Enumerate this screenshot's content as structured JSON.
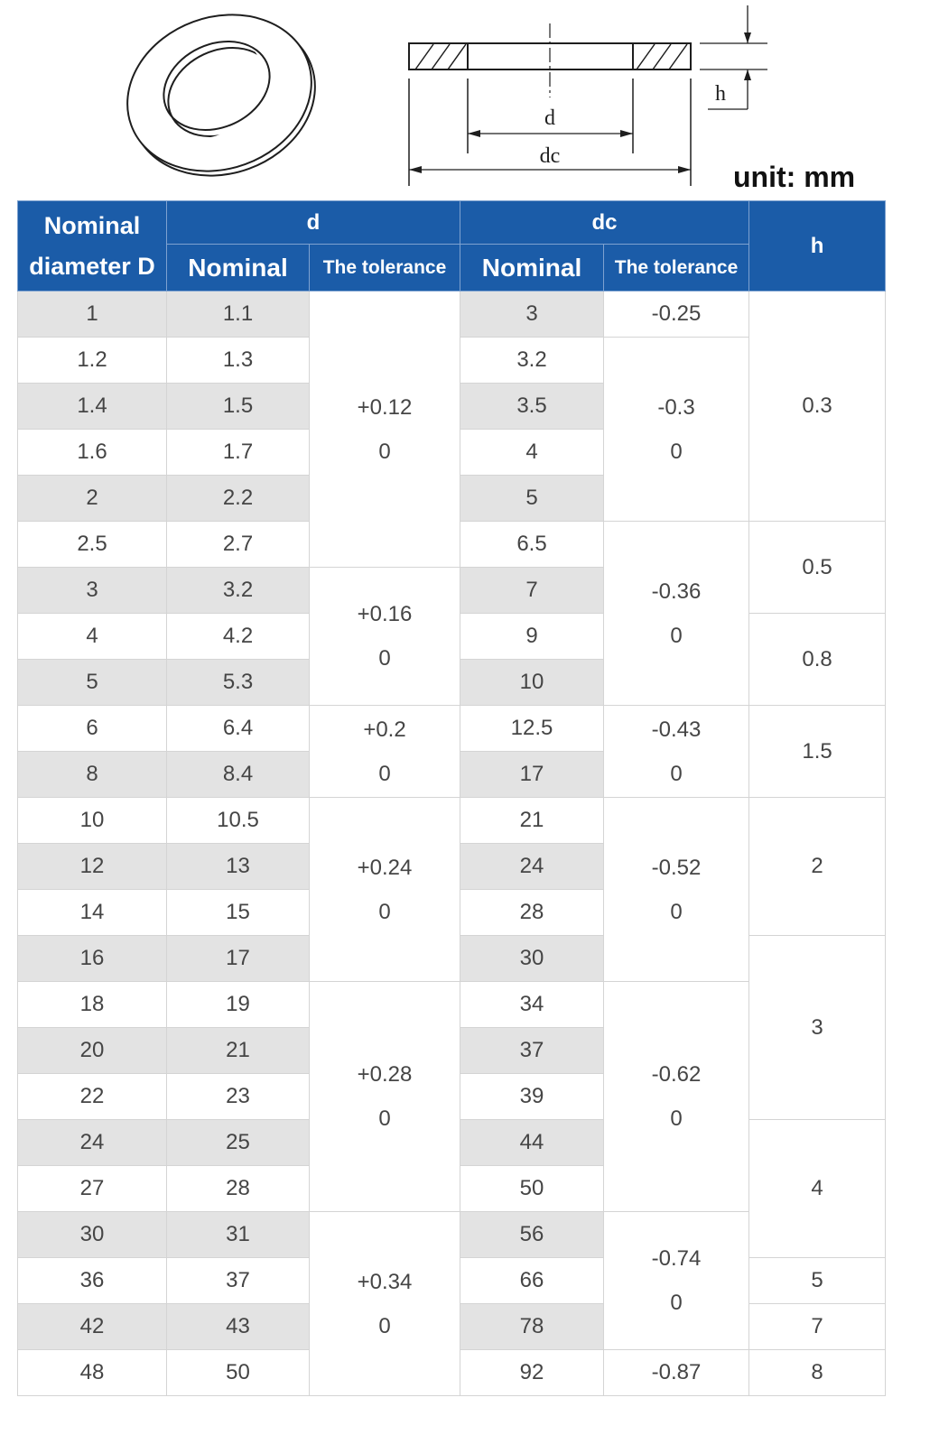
{
  "diagram": {
    "d_label": "d",
    "dc_label": "dc",
    "h_label": "h"
  },
  "unit_label": "unit: mm",
  "colors": {
    "header_bg": "#1b5ca8",
    "header_rule": "#7ea2d0",
    "row_shade": "#e3e3e3",
    "grid": "#d4d4d4",
    "text": "#454545"
  },
  "table": {
    "headers": {
      "nominal_diameter": "Nominal diameter D",
      "d": "d",
      "dc": "dc",
      "h": "h",
      "d_nominal": "Nominal",
      "d_tolerance": "The tolerance",
      "dc_nominal": "Nominal",
      "dc_tolerance": "The tolerance"
    },
    "rows": [
      {
        "D": "1",
        "d_nominal": "1.1",
        "dc_nominal": "3"
      },
      {
        "D": "1.2",
        "d_nominal": "1.3",
        "dc_nominal": "3.2"
      },
      {
        "D": "1.4",
        "d_nominal": "1.5",
        "dc_nominal": "3.5"
      },
      {
        "D": "1.6",
        "d_nominal": "1.7",
        "dc_nominal": "4"
      },
      {
        "D": "2",
        "d_nominal": "2.2",
        "dc_nominal": "5"
      },
      {
        "D": "2.5",
        "d_nominal": "2.7",
        "dc_nominal": "6.5"
      },
      {
        "D": "3",
        "d_nominal": "3.2",
        "dc_nominal": "7"
      },
      {
        "D": "4",
        "d_nominal": "4.2",
        "dc_nominal": "9"
      },
      {
        "D": "5",
        "d_nominal": "5.3",
        "dc_nominal": "10"
      },
      {
        "D": "6",
        "d_nominal": "6.4",
        "dc_nominal": "12.5"
      },
      {
        "D": "8",
        "d_nominal": "8.4",
        "dc_nominal": "17"
      },
      {
        "D": "10",
        "d_nominal": "10.5",
        "dc_nominal": "21"
      },
      {
        "D": "12",
        "d_nominal": "13",
        "dc_nominal": "24"
      },
      {
        "D": "14",
        "d_nominal": "15",
        "dc_nominal": "28"
      },
      {
        "D": "16",
        "d_nominal": "17",
        "dc_nominal": "30"
      },
      {
        "D": "18",
        "d_nominal": "19",
        "dc_nominal": "34"
      },
      {
        "D": "20",
        "d_nominal": "21",
        "dc_nominal": "37"
      },
      {
        "D": "22",
        "d_nominal": "23",
        "dc_nominal": "39"
      },
      {
        "D": "24",
        "d_nominal": "25",
        "dc_nominal": "44"
      },
      {
        "D": "27",
        "d_nominal": "28",
        "dc_nominal": "50"
      },
      {
        "D": "30",
        "d_nominal": "31",
        "dc_nominal": "56"
      },
      {
        "D": "36",
        "d_nominal": "37",
        "dc_nominal": "66"
      },
      {
        "D": "42",
        "d_nominal": "43",
        "dc_nominal": "78"
      },
      {
        "D": "48",
        "d_nominal": "50",
        "dc_nominal": "92"
      }
    ],
    "d_tolerance_groups": [
      {
        "row_count": 6,
        "upper": "+0.12",
        "lower": "0"
      },
      {
        "row_count": 3,
        "upper": "+0.16",
        "lower": "0"
      },
      {
        "row_count": 2,
        "upper": "+0.2",
        "lower": "0"
      },
      {
        "row_count": 4,
        "upper": "+0.24",
        "lower": "0"
      },
      {
        "row_count": 5,
        "upper": "+0.28",
        "lower": "0"
      },
      {
        "row_count": 4,
        "upper": "+0.34",
        "lower": "0"
      }
    ],
    "dc_tolerance_groups": [
      {
        "row_count": 1,
        "value": "-0.25"
      },
      {
        "row_count": 4,
        "upper": "-0.3",
        "lower": "0"
      },
      {
        "row_count": 4,
        "upper": "-0.36",
        "lower": "0"
      },
      {
        "row_count": 2,
        "upper": "-0.43",
        "lower": "0"
      },
      {
        "row_count": 4,
        "upper": "-0.52",
        "lower": "0"
      },
      {
        "row_count": 5,
        "upper": "-0.62",
        "lower": "0"
      },
      {
        "row_count": 3,
        "upper": "-0.74",
        "lower": "0"
      },
      {
        "row_count": 1,
        "value": "-0.87"
      }
    ],
    "h_groups": [
      {
        "row_count": 5,
        "value": "0.3"
      },
      {
        "row_count": 2,
        "value": "0.5"
      },
      {
        "row_count": 2,
        "value": "0.8"
      },
      {
        "row_count": 2,
        "value": "1.5"
      },
      {
        "row_count": 3,
        "value": "2"
      },
      {
        "row_count": 4,
        "value": "3"
      },
      {
        "row_count": 3,
        "value": "4"
      },
      {
        "row_count": 1,
        "value": "5"
      },
      {
        "row_count": 1,
        "value": "7"
      },
      {
        "row_count": 1,
        "value": "8"
      }
    ]
  }
}
